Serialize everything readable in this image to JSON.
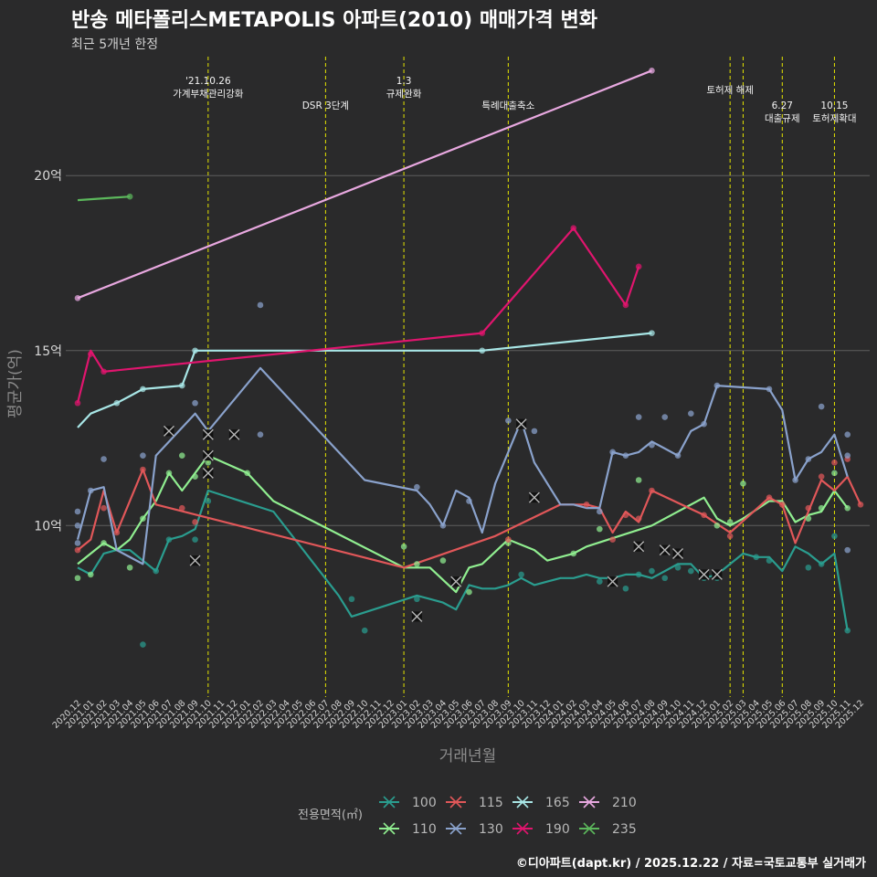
{
  "header": {
    "title": "반송 메타폴리스METAPOLIS 아파트(2010) 매매가격 변화",
    "subtitle": "최근 5개년 한정",
    "caption": "©디아파트(dapt.kr) / 2025.12.22 / 자료=국토교통부 실거래가"
  },
  "chart_data": {
    "type": "line",
    "title": "반송 메타폴리스METAPOLIS 아파트(2010) 매매가격 변화",
    "xlabel": "거래년월",
    "ylabel": "평균가(억)",
    "ylim": [
      5.1,
      23.4
    ],
    "grid": true,
    "legend_title": "전용면적(㎡)",
    "legend_position": "bottom",
    "categories": [
      "2020.12",
      "2021.01",
      "2021.02",
      "2021.03",
      "2021.04",
      "2021.05",
      "2021.06",
      "2021.07",
      "2021.08",
      "2021.09",
      "2021.10",
      "2021.11",
      "2021.12",
      "2022.01",
      "2022.02",
      "2022.03",
      "2022.04",
      "2022.05",
      "2022.06",
      "2022.07",
      "2022.08",
      "2022.09",
      "2022.10",
      "2022.11",
      "2022.12",
      "2023.01",
      "2023.02",
      "2023.03",
      "2023.04",
      "2023.05",
      "2023.06",
      "2023.07",
      "2023.08",
      "2023.09",
      "2023.10",
      "2023.11",
      "2023.12",
      "2024.01",
      "2024.02",
      "2024.03",
      "2024.04",
      "2024.05",
      "2024.06",
      "2024.07",
      "2024.08",
      "2024.09",
      "2024.10",
      "2024.11",
      "2024.12",
      "2025.01",
      "2025.02",
      "2025.03",
      "2025.04",
      "2025.05",
      "2025.06",
      "2025.07",
      "2025.08",
      "2025.09",
      "2025.10",
      "2025.11",
      "2025.12"
    ],
    "yticks": [
      {
        "value": 10,
        "label": "10억"
      },
      {
        "value": 15,
        "label": "15억"
      },
      {
        "value": 20,
        "label": "20억"
      }
    ],
    "series": [
      {
        "name": "100",
        "color": "#2a9d8f",
        "points": [
          [
            0,
            8.8
          ],
          [
            1,
            8.6
          ],
          [
            2,
            9.2
          ],
          [
            3,
            9.3
          ],
          [
            4,
            9.3
          ],
          [
            5,
            9.0
          ],
          [
            6,
            8.7
          ],
          [
            7,
            9.6
          ],
          [
            8,
            9.7
          ],
          [
            9,
            9.9
          ],
          [
            10,
            11.0
          ],
          [
            15,
            10.4
          ],
          [
            20,
            8.0
          ],
          [
            21,
            7.4
          ],
          [
            26,
            8.0
          ],
          [
            27,
            7.9
          ],
          [
            28,
            7.8
          ],
          [
            29,
            7.6
          ],
          [
            30,
            8.3
          ],
          [
            31,
            8.2
          ],
          [
            32,
            8.2
          ],
          [
            33,
            8.3
          ],
          [
            34,
            8.5
          ],
          [
            35,
            8.3
          ],
          [
            36,
            8.4
          ],
          [
            37,
            8.5
          ],
          [
            38,
            8.5
          ],
          [
            39,
            8.6
          ],
          [
            40,
            8.5
          ],
          [
            41,
            8.5
          ],
          [
            42,
            8.6
          ],
          [
            43,
            8.6
          ],
          [
            44,
            8.5
          ],
          [
            45,
            8.7
          ],
          [
            46,
            8.9
          ],
          [
            47,
            8.9
          ],
          [
            48,
            8.5
          ],
          [
            49,
            8.6
          ],
          [
            50,
            8.9
          ],
          [
            51,
            9.2
          ],
          [
            52,
            9.1
          ],
          [
            53,
            9.1
          ],
          [
            54,
            8.7
          ],
          [
            55,
            9.4
          ],
          [
            56,
            9.2
          ],
          [
            57,
            8.9
          ],
          [
            58,
            9.2
          ],
          [
            59,
            7.0
          ]
        ]
      },
      {
        "name": "110",
        "color": "#90ee90",
        "points": [
          [
            0,
            8.9
          ],
          [
            2,
            9.5
          ],
          [
            3,
            9.3
          ],
          [
            4,
            9.6
          ],
          [
            5,
            10.2
          ],
          [
            6,
            10.7
          ],
          [
            7,
            11.5
          ],
          [
            8,
            11.0
          ],
          [
            9,
            11.5
          ],
          [
            10,
            12.0
          ],
          [
            13,
            11.5
          ],
          [
            15,
            10.7
          ],
          [
            25,
            8.8
          ],
          [
            27,
            8.8
          ],
          [
            29,
            8.1
          ],
          [
            30,
            8.8
          ],
          [
            31,
            8.9
          ],
          [
            33,
            9.6
          ],
          [
            35,
            9.3
          ],
          [
            36,
            9.0
          ],
          [
            38,
            9.2
          ],
          [
            39,
            9.4
          ],
          [
            44,
            10.0
          ],
          [
            48,
            10.8
          ],
          [
            49,
            10.2
          ],
          [
            50,
            10.0
          ],
          [
            51,
            10.2
          ],
          [
            53,
            10.7
          ],
          [
            54,
            10.7
          ],
          [
            55,
            10.1
          ],
          [
            56,
            10.3
          ],
          [
            57,
            10.4
          ],
          [
            58,
            11.0
          ],
          [
            59,
            10.5
          ]
        ]
      },
      {
        "name": "115",
        "color": "#e15759",
        "points": [
          [
            0,
            9.3
          ],
          [
            1,
            9.6
          ],
          [
            2,
            11.0
          ],
          [
            3,
            9.8
          ],
          [
            5,
            11.6
          ],
          [
            6,
            10.6
          ],
          [
            25,
            8.8
          ],
          [
            32,
            9.7
          ],
          [
            37,
            10.6
          ],
          [
            39,
            10.6
          ],
          [
            40,
            10.5
          ],
          [
            41,
            9.8
          ],
          [
            42,
            10.4
          ],
          [
            43,
            10.1
          ],
          [
            44,
            11.0
          ],
          [
            48,
            10.3
          ],
          [
            50,
            9.8
          ],
          [
            53,
            10.8
          ],
          [
            54,
            10.6
          ],
          [
            55,
            9.5
          ],
          [
            57,
            11.3
          ],
          [
            58,
            11.0
          ],
          [
            59,
            11.4
          ],
          [
            60,
            10.6
          ]
        ]
      },
      {
        "name": "130",
        "color": "#8aa2cc",
        "points": [
          [
            0,
            9.6
          ],
          [
            1,
            11.0
          ],
          [
            2,
            11.1
          ],
          [
            3,
            9.3
          ],
          [
            5,
            8.9
          ],
          [
            6,
            12.0
          ],
          [
            9,
            13.2
          ],
          [
            10,
            12.7
          ],
          [
            14,
            14.5
          ],
          [
            22,
            11.3
          ],
          [
            26,
            11.0
          ],
          [
            27,
            10.6
          ],
          [
            28,
            10.0
          ],
          [
            29,
            11.0
          ],
          [
            30,
            10.8
          ],
          [
            31,
            9.8
          ],
          [
            32,
            11.2
          ],
          [
            34,
            13.0
          ],
          [
            35,
            11.8
          ],
          [
            37,
            10.6
          ],
          [
            38,
            10.6
          ],
          [
            39,
            10.5
          ],
          [
            40,
            10.5
          ],
          [
            41,
            12.1
          ],
          [
            42,
            12.0
          ],
          [
            43,
            12.1
          ],
          [
            44,
            12.4
          ],
          [
            45,
            12.2
          ],
          [
            46,
            12.0
          ],
          [
            47,
            12.7
          ],
          [
            48,
            12.9
          ],
          [
            49,
            14.0
          ],
          [
            53,
            13.9
          ],
          [
            54,
            13.3
          ],
          [
            55,
            11.3
          ],
          [
            56,
            11.9
          ],
          [
            57,
            12.1
          ],
          [
            58,
            12.6
          ],
          [
            59,
            11.4
          ]
        ]
      },
      {
        "name": "165",
        "color": "#a8e6e6",
        "points": [
          [
            0,
            12.8
          ],
          [
            1,
            13.2
          ],
          [
            3,
            13.5
          ],
          [
            4,
            13.7
          ],
          [
            5,
            13.9
          ],
          [
            8,
            14.0
          ],
          [
            9,
            15.0
          ],
          [
            31,
            15.0
          ],
          [
            44,
            15.5
          ]
        ]
      },
      {
        "name": "190",
        "color": "#e0156e",
        "points": [
          [
            0,
            13.5
          ],
          [
            1,
            15.0
          ],
          [
            2,
            14.4
          ],
          [
            31,
            15.5
          ],
          [
            38,
            18.5
          ],
          [
            42,
            16.3
          ],
          [
            43,
            17.4
          ]
        ]
      },
      {
        "name": "210",
        "color": "#e8a8e0",
        "points": [
          [
            0,
            16.5
          ],
          [
            44,
            23.0
          ]
        ]
      },
      {
        "name": "235",
        "color": "#5cb85c",
        "points": [
          [
            0,
            19.3
          ],
          [
            4,
            19.4
          ]
        ]
      }
    ],
    "scatter_points": [
      {
        "series": "100",
        "x": [
          5,
          6,
          7,
          9,
          10,
          21,
          22,
          26,
          34,
          40,
          42,
          43,
          44,
          45,
          46,
          47,
          48,
          49,
          52,
          53,
          56,
          57,
          58,
          59
        ],
        "y": [
          6.6,
          8.7,
          9.6,
          9.6,
          10.7,
          7.9,
          7.0,
          7.9,
          8.6,
          8.4,
          8.2,
          8.6,
          8.7,
          8.5,
          8.8,
          8.7,
          8.5,
          8.5,
          9.1,
          9.0,
          8.8,
          8.9,
          9.7,
          7.0
        ]
      },
      {
        "series": "110",
        "x": [
          0,
          1,
          2,
          4,
          5,
          7,
          8,
          9,
          10,
          13,
          25,
          26,
          28,
          30,
          33,
          38,
          40,
          43,
          49,
          50,
          51,
          56,
          57,
          58,
          59
        ],
        "y": [
          8.5,
          8.6,
          9.5,
          8.8,
          10.2,
          11.5,
          12.0,
          11.4,
          11.8,
          11.5,
          9.4,
          8.9,
          9.0,
          8.1,
          9.5,
          9.2,
          9.9,
          11.3,
          10.0,
          10.1,
          11.2,
          10.2,
          10.5,
          11.5,
          10.5
        ]
      },
      {
        "series": "115",
        "x": [
          0,
          2,
          3,
          5,
          8,
          9,
          33,
          39,
          41,
          42,
          43,
          44,
          48,
          50,
          53,
          54,
          56,
          57,
          58,
          59,
          60
        ],
        "y": [
          9.3,
          10.5,
          9.8,
          11.6,
          10.5,
          10.1,
          9.6,
          10.6,
          9.6,
          10.3,
          10.2,
          11.0,
          10.3,
          9.7,
          10.8,
          10.6,
          10.5,
          11.4,
          11.8,
          11.9,
          10.6
        ]
      },
      {
        "series": "130",
        "x": [
          0,
          0,
          0,
          1,
          2,
          5,
          9,
          14,
          14,
          26,
          28,
          30,
          33,
          35,
          40,
          41,
          42,
          43,
          44,
          45,
          46,
          47,
          48,
          49,
          53,
          55,
          56,
          57,
          59,
          59,
          59
        ],
        "y": [
          10.4,
          10.0,
          9.5,
          11.0,
          11.9,
          12.0,
          13.5,
          16.3,
          12.6,
          11.1,
          10.0,
          10.7,
          13.0,
          12.7,
          10.4,
          12.1,
          12.0,
          13.1,
          12.3,
          13.1,
          12.0,
          13.2,
          12.9,
          14.0,
          13.9,
          11.3,
          11.9,
          13.4,
          12.6,
          12.0,
          9.3
        ]
      },
      {
        "series": "165",
        "x": [
          3,
          5,
          8,
          9,
          31,
          44
        ],
        "y": [
          13.5,
          13.9,
          14.0,
          15.0,
          15.0,
          15.5
        ]
      },
      {
        "series": "190",
        "x": [
          0,
          1,
          2,
          31,
          38,
          42,
          43
        ],
        "y": [
          13.5,
          14.9,
          14.4,
          15.5,
          18.5,
          16.3,
          17.4
        ]
      },
      {
        "series": "210",
        "x": [
          0,
          44
        ],
        "y": [
          16.5,
          23.0
        ]
      },
      {
        "series": "235",
        "x": [
          4
        ],
        "y": [
          19.4
        ]
      }
    ],
    "cross_markers": [
      {
        "series": "100",
        "x": 26,
        "y": 7.4
      },
      {
        "series": "100",
        "x": 41,
        "y": 8.4
      },
      {
        "series": "100",
        "x": 48,
        "y": 8.6
      },
      {
        "series": "110",
        "x": 10,
        "y": 12.0
      },
      {
        "series": "110",
        "x": 10,
        "y": 11.5
      },
      {
        "series": "110",
        "x": 43,
        "y": 9.4
      },
      {
        "series": "115",
        "x": 29,
        "y": 8.4
      },
      {
        "series": "130",
        "x": 7,
        "y": 12.7
      },
      {
        "series": "130",
        "x": 9,
        "y": 9.0
      },
      {
        "series": "130",
        "x": 10,
        "y": 12.6
      },
      {
        "series": "130",
        "x": 12,
        "y": 12.6
      },
      {
        "series": "130",
        "x": 34,
        "y": 12.9
      },
      {
        "series": "130",
        "x": 35,
        "y": 10.8
      },
      {
        "series": "130",
        "x": 45,
        "y": 9.3
      },
      {
        "series": "130",
        "x": 46,
        "y": 9.2
      },
      {
        "series": "130",
        "x": 49,
        "y": 8.6
      }
    ],
    "annotations": [
      {
        "x": 10,
        "lines": [
          "'21.10.26",
          "가계부채관리강화"
        ],
        "row": 0
      },
      {
        "x": 19,
        "lines": [
          "DSR 3단계"
        ],
        "row": 1
      },
      {
        "x": 25,
        "lines": [
          "1.3",
          "규제완화"
        ],
        "row": 0
      },
      {
        "x": 33,
        "lines": [
          "특례대출축소"
        ],
        "row": 1
      },
      {
        "x": 50,
        "lines": [
          "토허제 해제"
        ],
        "row": 0
      },
      {
        "x": 51,
        "lines": [],
        "row": 0
      },
      {
        "x": 54,
        "lines": [
          "6.27",
          "대출규제"
        ],
        "row": 1
      },
      {
        "x": 58,
        "lines": [
          "10.15",
          "토허제확대"
        ],
        "row": 1
      }
    ]
  }
}
